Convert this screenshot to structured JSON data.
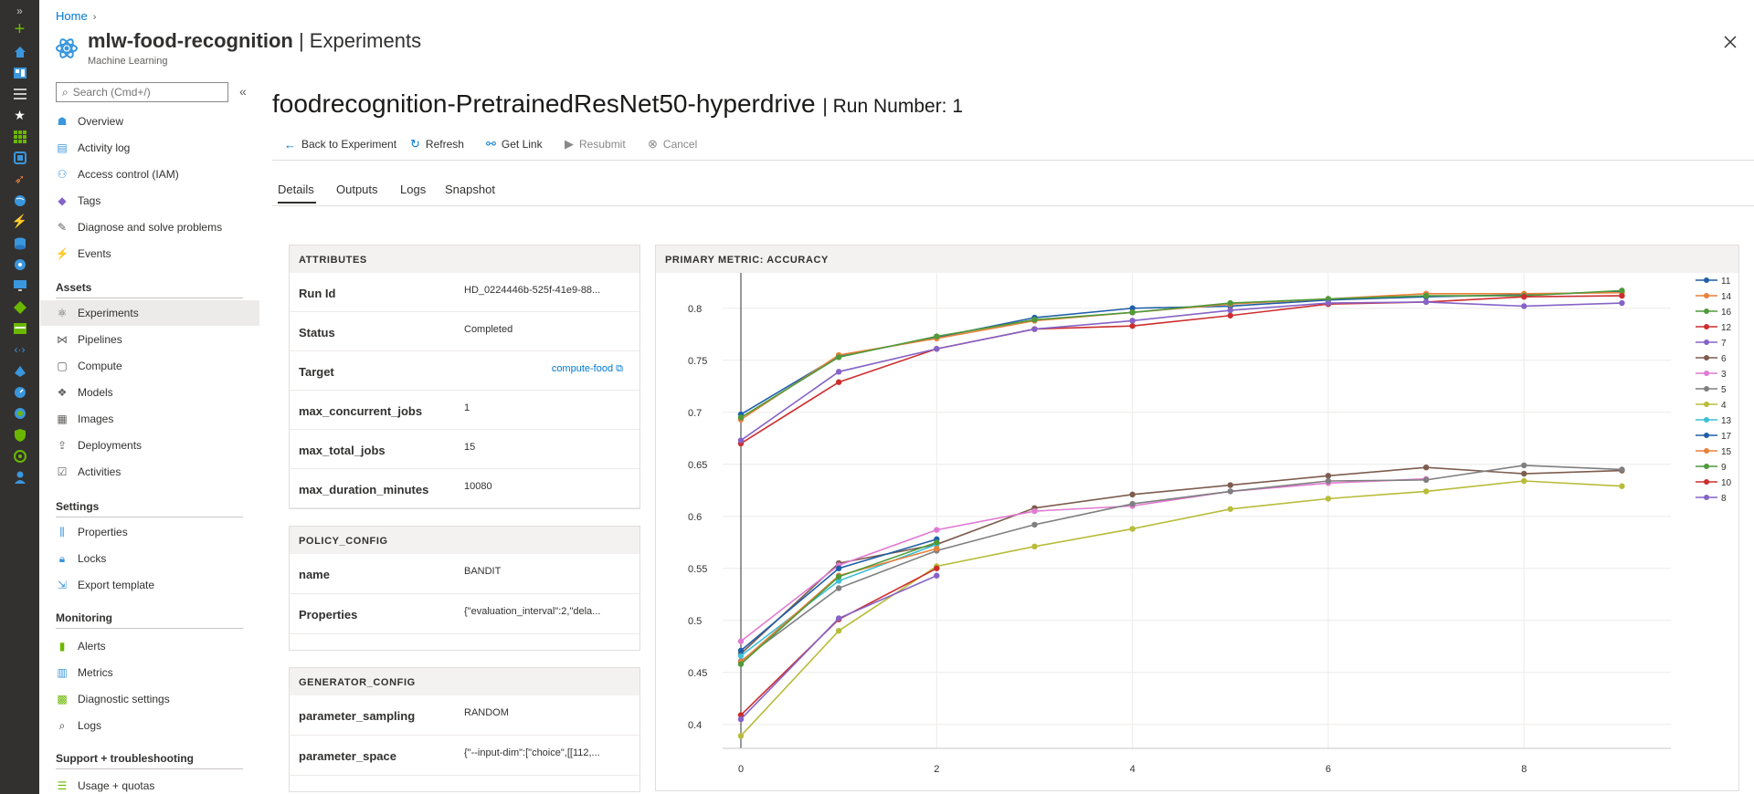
{
  "header": {
    "breadcrumb": "Home",
    "resource_name": "mlw-food-recognition",
    "page_title": "| Experiments",
    "resource_type": "Machine Learning"
  },
  "search": {
    "placeholder": "Search (Cmd+/)"
  },
  "menu": {
    "top_items": [
      "Overview",
      "Activity log",
      "Access control (IAM)",
      "Tags",
      "Diagnose and solve problems",
      "Events"
    ],
    "sections": [
      {
        "title": "Assets",
        "items": [
          "Experiments",
          "Pipelines",
          "Compute",
          "Models",
          "Images",
          "Deployments",
          "Activities"
        ]
      },
      {
        "title": "Settings",
        "items": [
          "Properties",
          "Locks",
          "Export template"
        ]
      },
      {
        "title": "Monitoring",
        "items": [
          "Alerts",
          "Metrics",
          "Diagnostic settings",
          "Logs"
        ]
      },
      {
        "title": "Support + troubleshooting",
        "items": [
          "Usage + quotas"
        ]
      }
    ],
    "active_item": "Experiments"
  },
  "run": {
    "name": "foodrecognition-PretrainedResNet50-hyperdrive",
    "number_label": "| Run Number: 1"
  },
  "commands": [
    {
      "label": "Back to Experiment",
      "icon": "back-arrow-icon",
      "enabled": true
    },
    {
      "label": "Refresh",
      "icon": "refresh-icon",
      "enabled": true
    },
    {
      "label": "Get Link",
      "icon": "link-icon",
      "enabled": true
    },
    {
      "label": "Resubmit",
      "icon": "play-icon",
      "enabled": false
    },
    {
      "label": "Cancel",
      "icon": "cancel-icon",
      "enabled": false
    }
  ],
  "tabs": [
    "Details",
    "Outputs",
    "Logs",
    "Snapshot"
  ],
  "active_tab": "Details",
  "attributes": {
    "title": "ATTRIBUTES",
    "rows": [
      {
        "key": "Run Id",
        "value": "HD_0224446b-525f-41e9-88..."
      },
      {
        "key": "Status",
        "value": "Completed"
      },
      {
        "key": "Target",
        "value": "compute-food",
        "link": true
      },
      {
        "key": "max_concurrent_jobs",
        "value": "1"
      },
      {
        "key": "max_total_jobs",
        "value": "15"
      },
      {
        "key": "max_duration_minutes",
        "value": "10080"
      }
    ]
  },
  "policy_config": {
    "title": "POLICY_CONFIG",
    "rows": [
      {
        "key": "name",
        "value": "BANDIT"
      },
      {
        "key": "Properties",
        "value": "{\"evaluation_interval\":2,\"dela..."
      }
    ]
  },
  "generator_config": {
    "title": "GENERATOR_CONFIG",
    "rows": [
      {
        "key": "parameter_sampling",
        "value": "RANDOM"
      },
      {
        "key": "parameter_space",
        "value": "{\"--input-dim\":[\"choice\",[[112,..."
      }
    ]
  },
  "colors": {
    "accent": "#0078d4",
    "rail_bg": "#323130"
  },
  "chart_data": {
    "type": "line",
    "title": "PRIMARY METRIC: ACCURACY",
    "xlabel": "",
    "ylabel": "",
    "xlim": [
      0,
      9.5
    ],
    "ylim": [
      0.377,
      0.834
    ],
    "xticks": [
      0,
      2,
      4,
      6,
      8
    ],
    "yticks": [
      0.4,
      0.45,
      0.5,
      0.55,
      0.6,
      0.65,
      0.7,
      0.75,
      0.8
    ],
    "grid": true,
    "legend": "right",
    "series": [
      {
        "name": "11",
        "color": "#1f5fa8",
        "x": [
          0,
          1,
          2,
          3,
          4,
          5,
          6,
          7,
          8,
          9
        ],
        "y": [
          0.698,
          0.754,
          0.772,
          0.791,
          0.8,
          0.802,
          0.808,
          0.811,
          0.813,
          0.816
        ]
      },
      {
        "name": "14",
        "color": "#e8813a",
        "x": [
          0,
          1,
          2,
          3,
          4,
          5,
          6,
          7,
          8,
          9
        ],
        "y": [
          0.693,
          0.755,
          0.771,
          0.788,
          0.796,
          0.804,
          0.809,
          0.814,
          0.814,
          0.815
        ]
      },
      {
        "name": "16",
        "color": "#4f9a3c",
        "x": [
          0,
          1,
          2,
          3,
          4,
          5,
          6,
          7,
          8,
          9
        ],
        "y": [
          0.695,
          0.753,
          0.773,
          0.789,
          0.796,
          0.805,
          0.809,
          0.812,
          0.812,
          0.817
        ]
      },
      {
        "name": "12",
        "color": "#cc2e2e",
        "x": [
          0,
          1,
          2,
          3,
          4,
          5,
          6,
          7,
          8,
          9
        ],
        "y": [
          0.67,
          0.729,
          0.761,
          0.78,
          0.783,
          0.793,
          0.804,
          0.806,
          0.811,
          0.812
        ]
      },
      {
        "name": "7",
        "color": "#8563c7",
        "x": [
          0,
          1,
          2,
          3,
          4,
          5,
          6,
          7,
          8,
          9
        ],
        "y": [
          0.673,
          0.739,
          0.761,
          0.78,
          0.788,
          0.798,
          0.805,
          0.806,
          0.802,
          0.805
        ]
      },
      {
        "name": "6",
        "color": "#7d5c4e",
        "x": [
          0,
          1,
          2,
          3,
          4,
          5,
          6,
          7,
          8,
          9
        ],
        "y": [
          0.468,
          0.555,
          0.573,
          0.608,
          0.621,
          0.63,
          0.639,
          0.647,
          0.641,
          0.644
        ]
      },
      {
        "name": "3",
        "color": "#e07ad1",
        "x": [
          0,
          1,
          2,
          3,
          4,
          5,
          6,
          7
        ],
        "y": [
          0.48,
          0.553,
          0.587,
          0.605,
          0.61,
          0.624,
          0.632,
          0.636
        ]
      },
      {
        "name": "5",
        "color": "#7f7f7f",
        "x": [
          0,
          1,
          2,
          3,
          4,
          5,
          6,
          7,
          8,
          9
        ],
        "y": [
          0.461,
          0.531,
          0.567,
          0.592,
          0.612,
          0.624,
          0.634,
          0.635,
          0.649,
          0.645
        ]
      },
      {
        "name": "4",
        "color": "#b8bc3a",
        "x": [
          0,
          1,
          2,
          3,
          4,
          5,
          6,
          7,
          8,
          9
        ],
        "y": [
          0.389,
          0.49,
          0.552,
          0.571,
          0.588,
          0.607,
          0.617,
          0.624,
          0.634,
          0.629
        ]
      },
      {
        "name": "13",
        "color": "#3fbfd6",
        "x": [
          0,
          1,
          2
        ],
        "y": [
          0.466,
          0.538,
          0.573
        ]
      },
      {
        "name": "17",
        "color": "#1f5fa8",
        "x": [
          0,
          1,
          2
        ],
        "y": [
          0.471,
          0.55,
          0.578
        ]
      },
      {
        "name": "15",
        "color": "#e8813a",
        "x": [
          0,
          1,
          2
        ],
        "y": [
          0.46,
          0.543,
          0.569
        ]
      },
      {
        "name": "9",
        "color": "#4f9a3c",
        "x": [
          0,
          1,
          2
        ],
        "y": [
          0.458,
          0.542,
          0.575
        ]
      },
      {
        "name": "10",
        "color": "#cc2e2e",
        "x": [
          0,
          1,
          2
        ],
        "y": [
          0.409,
          0.501,
          0.55
        ]
      },
      {
        "name": "8",
        "color": "#8563c7",
        "x": [
          0,
          1,
          2
        ],
        "y": [
          0.405,
          0.502,
          0.543
        ]
      }
    ]
  }
}
